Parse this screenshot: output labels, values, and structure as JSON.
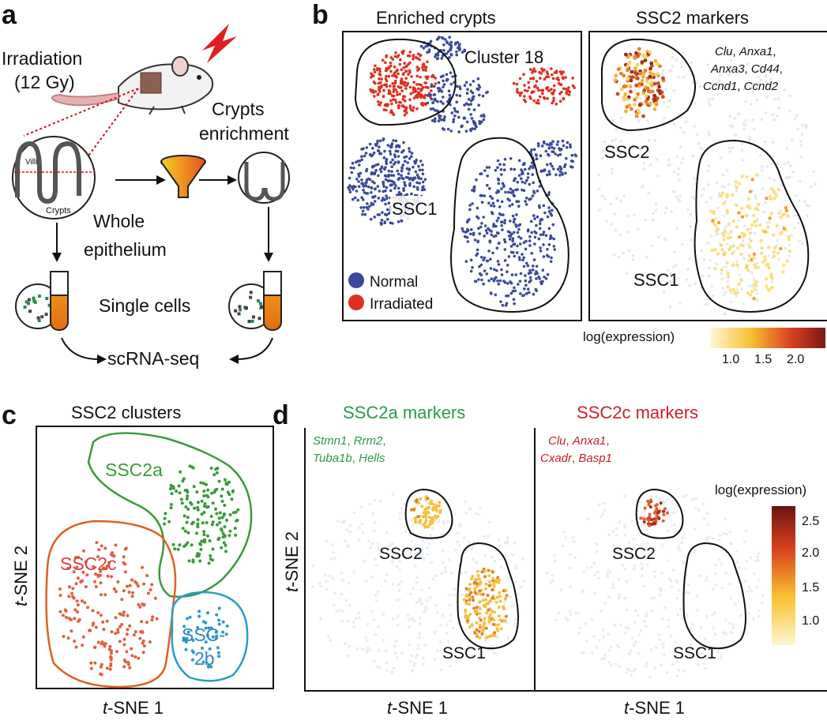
{
  "panel_a": {
    "letter": "a",
    "irradiation_line1": "Irradiation",
    "irradiation_line2": "(12 Gy)",
    "crypts_line1": "Crypts",
    "crypts_line2": "enrichment",
    "villi_label": "Villi",
    "crypts_label": "Crypts",
    "whole_line1": "Whole",
    "whole_line2": "epithelium",
    "single_cells": "Single cells",
    "scrna": "scRNA-seq"
  },
  "panel_b": {
    "letter": "b",
    "left_title": "Enriched crypts",
    "right_title": "SSC2 markers",
    "cluster18": "Cluster 18",
    "ssc1": "SSC1",
    "ssc2": "SSC2",
    "legend_normal": "Normal",
    "legend_irradiated": "Irradiated",
    "markers_line1_a": "Clu",
    "markers_line1_b": "Anxa1",
    "markers_line2_a": "Anxa3",
    "markers_line2_b": "Cd44",
    "markers_line3_a": "Ccnd1",
    "markers_line3_b": "Ccnd2",
    "colorbar_title": "log(expression)",
    "colorbar_ticks": [
      "1.0",
      "1.5",
      "2.0"
    ],
    "colors": {
      "normal": "#3a4a9a",
      "irradiated": "#e03020"
    }
  },
  "panel_c": {
    "letter": "c",
    "title": "SSC2 clusters",
    "ssc2a": "SSC2a",
    "ssc2c": "SSC2c",
    "ssc2b_line1": "SSC-",
    "ssc2b_line2": "2b",
    "xlabel_italic": "t",
    "xlabel_rest": "-SNE 1",
    "ylabel_italic": "t",
    "ylabel_rest": "-SNE 2",
    "colors": {
      "ssc2a": "#3a9a3a",
      "ssc2c": "#e06040",
      "ssc2b": "#2a9ad0"
    }
  },
  "panel_d": {
    "letter": "d",
    "left_title": "SSC2a markers",
    "right_title": "SSC2c markers",
    "left_markers_line1_a": "Stmn1",
    "left_markers_line1_b": "Rrm2",
    "left_markers_line2_a": "Tuba1b",
    "left_markers_line2_b": "Hells",
    "right_markers_line1_a": "Clu",
    "right_markers_line1_b": "Anxa1",
    "right_markers_line2_a": "Cxadr",
    "right_markers_line2_b": "Basp1",
    "ssc1": "SSC1",
    "ssc2": "SSC2",
    "colorbar_title": "log(expression)",
    "colorbar_ticks": [
      "2.5",
      "2.0",
      "1.5",
      "1.0"
    ],
    "xlabel_italic": "t",
    "xlabel_rest": "-SNE 1",
    "ylabel_italic": "t",
    "ylabel_rest": "-SNE 2",
    "colors": {
      "left_title": "#2a9a4a",
      "right_title": "#d0202a"
    }
  }
}
